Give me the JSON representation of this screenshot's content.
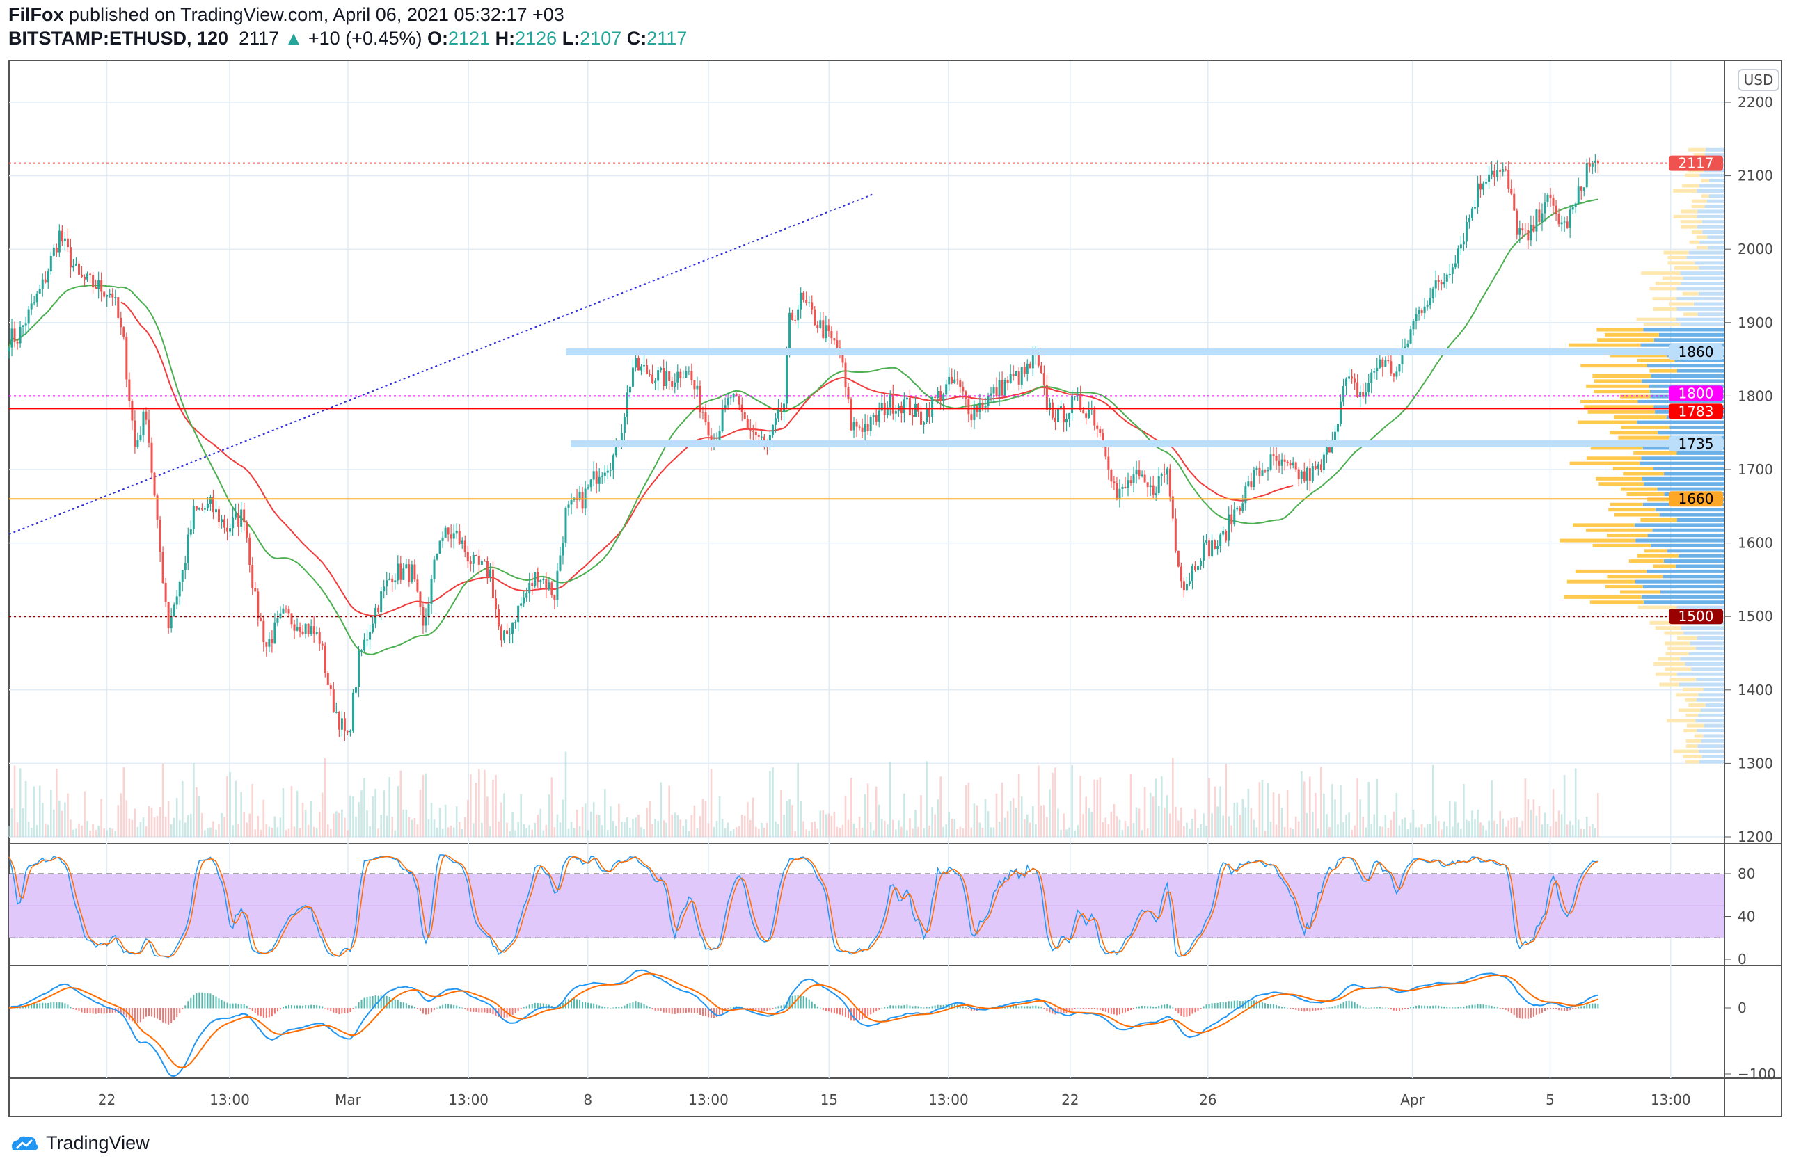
{
  "header": {
    "author": "FilFox",
    "published": "published on TradingView.com, April 06, 2021 05:32:17 +03",
    "symbol": "BITSTAMP:ETHUSD, 120",
    "last": "2117",
    "change": "+10 (+0.45%)",
    "o_label": "O:",
    "o": "2121",
    "h_label": "H:",
    "h": "2126",
    "l_label": "L:",
    "l": "2107",
    "c_label": "C:",
    "c": "2117"
  },
  "currency_button": "USD",
  "footer": {
    "brand": "TradingView"
  },
  "colors": {
    "up": "#26a69a",
    "down": "#ef5350",
    "ma_slow": "#f23b3b",
    "ma_fast": "#4caf50",
    "stoch_bg": "#e1c8fa"
  },
  "chart_data": {
    "type": "candlestick",
    "symbol": "BITSTAMP:ETHUSD",
    "interval_minutes": 120,
    "price_axis": {
      "min": 1200,
      "max": 2200,
      "ticks": [
        "2200",
        "2100",
        "2000",
        "1900",
        "1800",
        "1700",
        "1600",
        "1500",
        "1400",
        "1300",
        "1200"
      ]
    },
    "time_axis": [
      "22",
      "13:00",
      "Mar",
      "13:00",
      "8",
      "13:00",
      "15",
      "13:00",
      "22",
      "26",
      "Apr",
      "5",
      "13:00"
    ],
    "close_keypoints_bar_price": [
      [
        3,
        1880
      ],
      [
        12,
        1950
      ],
      [
        18,
        2020
      ],
      [
        25,
        1960
      ],
      [
        31,
        1950
      ],
      [
        37,
        1940
      ],
      [
        41,
        1870
      ],
      [
        45,
        1730
      ],
      [
        49,
        1780
      ],
      [
        53,
        1620
      ],
      [
        57,
        1490
      ],
      [
        62,
        1560
      ],
      [
        66,
        1640
      ],
      [
        72,
        1650
      ],
      [
        78,
        1620
      ],
      [
        84,
        1640
      ],
      [
        88,
        1520
      ],
      [
        92,
        1460
      ],
      [
        98,
        1500
      ],
      [
        105,
        1490
      ],
      [
        111,
        1470
      ],
      [
        115,
        1390
      ],
      [
        121,
        1330
      ],
      [
        125,
        1440
      ],
      [
        131,
        1510
      ],
      [
        137,
        1560
      ],
      [
        144,
        1560
      ],
      [
        148,
        1480
      ],
      [
        154,
        1610
      ],
      [
        160,
        1610
      ],
      [
        166,
        1570
      ],
      [
        172,
        1560
      ],
      [
        176,
        1460
      ],
      [
        182,
        1510
      ],
      [
        189,
        1560
      ],
      [
        195,
        1530
      ],
      [
        199,
        1640
      ],
      [
        205,
        1660
      ],
      [
        211,
        1700
      ],
      [
        217,
        1720
      ],
      [
        223,
        1840
      ],
      [
        230,
        1830
      ],
      [
        236,
        1820
      ],
      [
        242,
        1840
      ],
      [
        248,
        1780
      ],
      [
        252,
        1740
      ],
      [
        258,
        1800
      ],
      [
        264,
        1760
      ],
      [
        271,
        1730
      ],
      [
        277,
        1790
      ],
      [
        279,
        1900
      ],
      [
        283,
        1930
      ],
      [
        291,
        1890
      ],
      [
        297,
        1860
      ],
      [
        301,
        1760
      ],
      [
        308,
        1760
      ],
      [
        314,
        1790
      ],
      [
        320,
        1790
      ],
      [
        326,
        1770
      ],
      [
        332,
        1800
      ],
      [
        338,
        1820
      ],
      [
        344,
        1780
      ],
      [
        351,
        1800
      ],
      [
        357,
        1820
      ],
      [
        363,
        1830
      ],
      [
        367,
        1850
      ],
      [
        371,
        1790
      ],
      [
        375,
        1770
      ],
      [
        381,
        1790
      ],
      [
        387,
        1780
      ],
      [
        392,
        1730
      ],
      [
        396,
        1660
      ],
      [
        402,
        1690
      ],
      [
        408,
        1670
      ],
      [
        414,
        1700
      ],
      [
        417,
        1600
      ],
      [
        420,
        1540
      ],
      [
        426,
        1590
      ],
      [
        433,
        1600
      ],
      [
        439,
        1650
      ],
      [
        445,
        1690
      ],
      [
        451,
        1710
      ],
      [
        457,
        1700
      ],
      [
        463,
        1690
      ],
      [
        469,
        1700
      ],
      [
        474,
        1760
      ],
      [
        478,
        1820
      ],
      [
        484,
        1800
      ],
      [
        490,
        1850
      ],
      [
        496,
        1830
      ],
      [
        502,
        1900
      ],
      [
        506,
        1930
      ],
      [
        513,
        1960
      ],
      [
        519,
        2010
      ],
      [
        525,
        2080
      ],
      [
        529,
        2110
      ],
      [
        535,
        2100
      ],
      [
        539,
        2030
      ],
      [
        543,
        2010
      ],
      [
        549,
        2070
      ],
      [
        556,
        2030
      ],
      [
        560,
        2060
      ],
      [
        564,
        2110
      ],
      [
        568,
        2117
      ]
    ],
    "levels": [
      {
        "price": 2117,
        "label": "2117",
        "style": "dotted",
        "color": "#ef5350",
        "text_color": "#ffffff"
      },
      {
        "price": 1860,
        "label": "1860",
        "style": "band",
        "color": "#bbdefb",
        "text_color": "#000000"
      },
      {
        "price": 1800,
        "label": "1800",
        "style": "dotted",
        "color": "#ff00ff",
        "text_color": "#ffffff"
      },
      {
        "price": 1783,
        "label": "1783",
        "style": "solid",
        "color": "#ff0000",
        "text_color": "#ffffff"
      },
      {
        "price": 1735,
        "label": "1735",
        "style": "band",
        "color": "#bbdefb",
        "text_color": "#000000"
      },
      {
        "price": 1660,
        "label": "1660",
        "style": "solid",
        "color": "#ffa726",
        "text_color": "#000000"
      },
      {
        "price": 1500,
        "label": "1500",
        "style": "dotted",
        "color": "#990000",
        "text_color": "#ffffff"
      }
    ],
    "trendline": {
      "from_bar": 0,
      "from_price": 1612,
      "to_bar": 309,
      "to_price": 2075
    },
    "stochastic": {
      "ticks": [
        "80",
        "40",
        "0"
      ],
      "upper": 80,
      "lower": 20
    },
    "macd": {
      "ticks": [
        "0",
        "−100"
      ]
    }
  }
}
